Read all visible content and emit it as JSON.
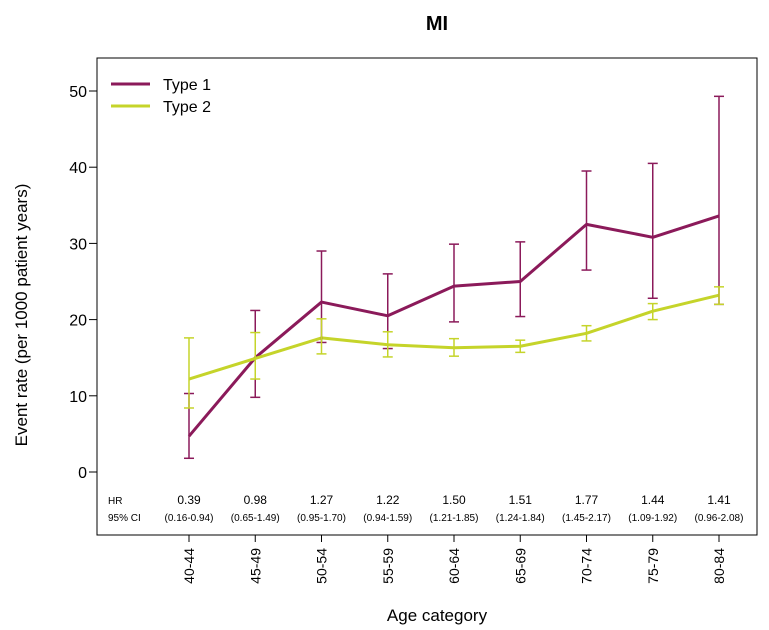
{
  "chart_data": {
    "type": "line",
    "title": "MI",
    "xlabel": "Age category",
    "ylabel": "Event rate (per 1000 patient years)",
    "ylim": [
      -9,
      54
    ],
    "yticks": [
      0,
      10,
      20,
      30,
      40,
      50
    ],
    "categories": [
      "40-44",
      "45-49",
      "50-54",
      "55-59",
      "60-64",
      "65-69",
      "70-74",
      "75-79",
      "80-84"
    ],
    "legend_position": "top-left",
    "grid": false,
    "series": [
      {
        "name": "Type 1",
        "color": "#8B1A5A",
        "values": [
          4.7,
          15.0,
          22.3,
          20.5,
          24.4,
          25.0,
          32.5,
          30.8,
          33.6
        ],
        "ci_low": [
          1.8,
          9.8,
          17.0,
          16.2,
          19.7,
          20.4,
          26.5,
          22.8,
          22.0
        ],
        "ci_high": [
          10.3,
          21.2,
          29.0,
          26.0,
          29.9,
          30.2,
          39.5,
          40.5,
          49.3
        ]
      },
      {
        "name": "Type 2",
        "color": "#C5D42A",
        "values": [
          12.2,
          14.9,
          17.6,
          16.7,
          16.3,
          16.5,
          18.2,
          21.1,
          23.2
        ],
        "ci_low": [
          8.4,
          12.2,
          15.5,
          15.1,
          15.2,
          15.7,
          17.2,
          20.0,
          22.0
        ],
        "ci_high": [
          17.6,
          18.3,
          20.1,
          18.4,
          17.5,
          17.3,
          19.2,
          22.1,
          24.3
        ]
      }
    ],
    "annotations": {
      "hr_label": "HR",
      "ci_label": "95% CI",
      "hr": [
        "0.39",
        "0.98",
        "1.27",
        "1.22",
        "1.50",
        "1.51",
        "1.77",
        "1.44",
        "1.41"
      ],
      "ci": [
        "(0.16-0.94)",
        "(0.65-1.49)",
        "(0.95-1.70)",
        "(0.94-1.59)",
        "(1.21-1.85)",
        "(1.24-1.84)",
        "(1.45-2.17)",
        "(1.09-1.92)",
        "(0.96-2.08)"
      ]
    }
  }
}
